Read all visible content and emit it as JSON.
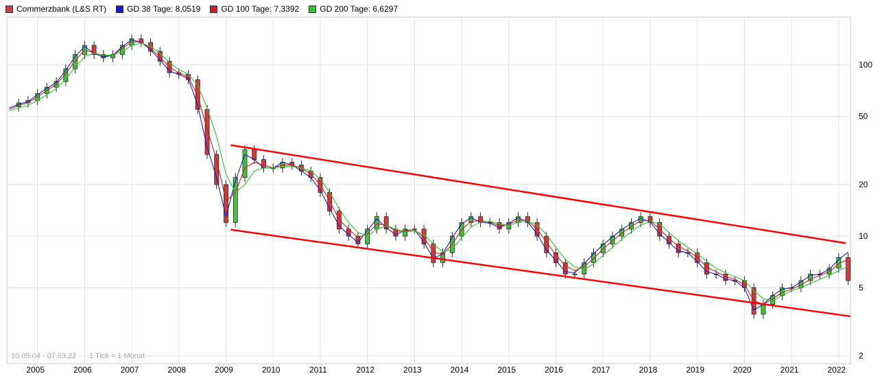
{
  "legend": {
    "items": [
      {
        "label": "Commerzbank (L&S RT)",
        "color": "#d23c3c"
      },
      {
        "label": "GD 38 Tage: 8,0519",
        "color": "#1a1ac8"
      },
      {
        "label": "GD 100 Tage: 7,3392",
        "color": "#d21e1e"
      },
      {
        "label": "GD 200 Tage: 6,6297",
        "color": "#28c828"
      }
    ]
  },
  "footer": {
    "timestamp": "10.05.04 - 07.03.22",
    "tick_info": "1 Tick = 1 Monat"
  },
  "chart_data": {
    "type": "candlestick",
    "scale": "log",
    "y_axis_side": "right",
    "grid": true,
    "ylim": [
      1.8,
      190
    ],
    "xlim": [
      2004.35,
      2022.25
    ],
    "x_tick_labels": [
      "2005",
      "2006",
      "2007",
      "2008",
      "2009",
      "2010",
      "2011",
      "2012",
      "2013",
      "2014",
      "2015",
      "2016",
      "2017",
      "2018",
      "2019",
      "2020",
      "2021",
      "2022"
    ],
    "y_tick_labels": [
      "100",
      "50",
      "20",
      "10",
      "5",
      "2"
    ],
    "y_ticks": [
      100,
      50,
      20,
      10,
      5,
      2
    ],
    "up_color": "#3cc83c",
    "down_color": "#d23c3c",
    "series": [
      {
        "name": "Commerzbank (L&S RT)",
        "kind": "price",
        "color": "#d23c3c",
        "x": [
          2004.4,
          2004.6,
          2004.8,
          2005.0,
          2005.2,
          2005.4,
          2005.6,
          2005.8,
          2006.0,
          2006.2,
          2006.4,
          2006.6,
          2006.8,
          2007.0,
          2007.2,
          2007.4,
          2007.6,
          2007.8,
          2008.0,
          2008.2,
          2008.4,
          2008.6,
          2008.8,
          2009.0,
          2009.2,
          2009.4,
          2009.6,
          2009.8,
          2010.0,
          2010.2,
          2010.4,
          2010.6,
          2010.8,
          2011.0,
          2011.2,
          2011.4,
          2011.6,
          2011.8,
          2012.0,
          2012.2,
          2012.4,
          2012.6,
          2012.8,
          2013.0,
          2013.2,
          2013.4,
          2013.6,
          2013.8,
          2014.0,
          2014.2,
          2014.4,
          2014.6,
          2014.8,
          2015.0,
          2015.2,
          2015.4,
          2015.6,
          2015.8,
          2016.0,
          2016.2,
          2016.4,
          2016.6,
          2016.8,
          2017.0,
          2017.2,
          2017.4,
          2017.6,
          2017.8,
          2018.0,
          2018.2,
          2018.4,
          2018.6,
          2018.8,
          2019.0,
          2019.2,
          2019.4,
          2019.6,
          2019.8,
          2020.0,
          2020.2,
          2020.4,
          2020.6,
          2020.8,
          2021.0,
          2021.2,
          2021.4,
          2021.6,
          2021.8,
          2022.0,
          2022.2
        ],
        "y": [
          57,
          60,
          62,
          68,
          74,
          80,
          95,
          115,
          130,
          115,
          110,
          115,
          130,
          142,
          135,
          120,
          105,
          90,
          88,
          82,
          55,
          30,
          20,
          12,
          22,
          32,
          28,
          25,
          25,
          27,
          26,
          24,
          22,
          18,
          14,
          11,
          10,
          9,
          11,
          13,
          11,
          10,
          11,
          11,
          9,
          7,
          8,
          10,
          12,
          13,
          12,
          12,
          11,
          12,
          13,
          12,
          10,
          8,
          7,
          6,
          6,
          7,
          8,
          9,
          10,
          11,
          12,
          13,
          12,
          10,
          9,
          8,
          8,
          7,
          6,
          6,
          5.5,
          5.5,
          5,
          3.5,
          4,
          4.5,
          5,
          5,
          5.5,
          6,
          6,
          6.5,
          7.5,
          5.5
        ]
      },
      {
        "name": "GD 38 Tage: 8,0519",
        "kind": "ma",
        "color": "#1a1ac8",
        "x": [
          2004.4,
          2004.6,
          2004.8,
          2005.0,
          2005.2,
          2005.4,
          2005.6,
          2005.8,
          2006.0,
          2006.2,
          2006.4,
          2006.6,
          2006.8,
          2007.0,
          2007.2,
          2007.4,
          2007.6,
          2007.8,
          2008.0,
          2008.2,
          2008.4,
          2008.6,
          2008.8,
          2009.0,
          2009.2,
          2009.4,
          2009.6,
          2009.8,
          2010.0,
          2010.2,
          2010.4,
          2010.6,
          2010.8,
          2011.0,
          2011.2,
          2011.4,
          2011.6,
          2011.8,
          2012.0,
          2012.2,
          2012.4,
          2012.6,
          2012.8,
          2013.0,
          2013.2,
          2013.4,
          2013.6,
          2013.8,
          2014.0,
          2014.2,
          2014.4,
          2014.6,
          2014.8,
          2015.0,
          2015.2,
          2015.4,
          2015.6,
          2015.8,
          2016.0,
          2016.2,
          2016.4,
          2016.6,
          2016.8,
          2017.0,
          2017.2,
          2017.4,
          2017.6,
          2017.8,
          2018.0,
          2018.2,
          2018.4,
          2018.6,
          2018.8,
          2019.0,
          2019.2,
          2019.4,
          2019.6,
          2019.8,
          2020.0,
          2020.2,
          2020.4,
          2020.6,
          2020.8,
          2021.0,
          2021.2,
          2021.4,
          2021.6,
          2021.8,
          2022.0,
          2022.2
        ],
        "y": [
          56,
          59,
          61,
          67,
          73,
          79,
          93,
          112,
          128,
          117,
          111,
          114,
          128,
          140,
          136,
          122,
          107,
          92,
          88,
          83,
          58,
          33,
          22,
          13,
          21,
          30,
          28,
          25,
          25,
          27,
          26,
          24,
          22,
          18.5,
          14.5,
          11.5,
          10.2,
          9.2,
          10.8,
          12.6,
          11.2,
          10.2,
          10.8,
          10.9,
          9.2,
          7.4,
          7.9,
          9.8,
          11.8,
          12.8,
          12.1,
          11.9,
          11.2,
          11.9,
          12.8,
          12.1,
          10.3,
          8.3,
          7.2,
          6.2,
          6.1,
          6.9,
          7.9,
          8.9,
          9.9,
          10.9,
          11.9,
          12.7,
          12.1,
          10.3,
          9.2,
          8.2,
          8.0,
          7.1,
          6.2,
          6.0,
          5.6,
          5.5,
          5.0,
          3.7,
          4.0,
          4.5,
          4.9,
          5.0,
          5.4,
          5.9,
          6.0,
          6.4,
          7.3,
          8.05
        ]
      },
      {
        "name": "GD 100 Tage: 7,3392",
        "kind": "ma",
        "color": "#d21e1e",
        "x": [
          2004.4,
          2004.6,
          2004.8,
          2005.0,
          2005.2,
          2005.4,
          2005.6,
          2005.8,
          2006.0,
          2006.2,
          2006.4,
          2006.6,
          2006.8,
          2007.0,
          2007.2,
          2007.4,
          2007.6,
          2007.8,
          2008.0,
          2008.2,
          2008.4,
          2008.6,
          2008.8,
          2009.0,
          2009.2,
          2009.4,
          2009.6,
          2009.8,
          2010.0,
          2010.2,
          2010.4,
          2010.6,
          2010.8,
          2011.0,
          2011.2,
          2011.4,
          2011.6,
          2011.8,
          2012.0,
          2012.2,
          2012.4,
          2012.6,
          2012.8,
          2013.0,
          2013.2,
          2013.4,
          2013.6,
          2013.8,
          2014.0,
          2014.2,
          2014.4,
          2014.6,
          2014.8,
          2015.0,
          2015.2,
          2015.4,
          2015.6,
          2015.8,
          2016.0,
          2016.2,
          2016.4,
          2016.6,
          2016.8,
          2017.0,
          2017.2,
          2017.4,
          2017.6,
          2017.8,
          2018.0,
          2018.2,
          2018.4,
          2018.6,
          2018.8,
          2019.0,
          2019.2,
          2019.4,
          2019.6,
          2019.8,
          2020.0,
          2020.2,
          2020.4,
          2020.6,
          2020.8,
          2021.0,
          2021.2,
          2021.4,
          2021.6,
          2021.8,
          2022.0,
          2022.2
        ],
        "y": [
          55,
          58,
          60,
          65,
          71,
          77,
          89,
          106,
          122,
          118,
          113,
          114,
          125,
          136,
          136,
          125,
          111,
          97,
          90,
          85,
          66,
          42,
          28,
          16,
          18,
          25,
          27,
          26,
          25,
          26,
          26,
          25,
          23,
          20,
          16,
          12.5,
          11,
          9.8,
          10.3,
          11.8,
          11.6,
          10.7,
          10.7,
          10.9,
          9.8,
          8.1,
          7.8,
          9.0,
          10.9,
          12.2,
          12.3,
          12.1,
          11.5,
          11.7,
          12.4,
          12.3,
          11.0,
          9.2,
          7.8,
          6.7,
          6.3,
          6.6,
          7.4,
          8.4,
          9.4,
          10.4,
          11.4,
          12.3,
          12.3,
          11.0,
          9.7,
          8.7,
          8.2,
          7.5,
          6.6,
          6.2,
          5.8,
          5.6,
          5.2,
          4.2,
          4.0,
          4.3,
          4.7,
          4.9,
          5.2,
          5.6,
          5.9,
          6.2,
          6.9,
          7.34
        ]
      },
      {
        "name": "GD 200 Tage: 6,6297",
        "kind": "ma",
        "color": "#28c828",
        "x": [
          2004.4,
          2004.6,
          2004.8,
          2005.0,
          2005.2,
          2005.4,
          2005.6,
          2005.8,
          2006.0,
          2006.2,
          2006.4,
          2006.6,
          2006.8,
          2007.0,
          2007.2,
          2007.4,
          2007.6,
          2007.8,
          2008.0,
          2008.2,
          2008.4,
          2008.6,
          2008.8,
          2009.0,
          2009.2,
          2009.4,
          2009.6,
          2009.8,
          2010.0,
          2010.2,
          2010.4,
          2010.6,
          2010.8,
          2011.0,
          2011.2,
          2011.4,
          2011.6,
          2011.8,
          2012.0,
          2012.2,
          2012.4,
          2012.6,
          2012.8,
          2013.0,
          2013.2,
          2013.4,
          2013.6,
          2013.8,
          2014.0,
          2014.2,
          2014.4,
          2014.6,
          2014.8,
          2015.0,
          2015.2,
          2015.4,
          2015.6,
          2015.8,
          2016.0,
          2016.2,
          2016.4,
          2016.6,
          2016.8,
          2017.0,
          2017.2,
          2017.4,
          2017.6,
          2017.8,
          2018.0,
          2018.2,
          2018.4,
          2018.6,
          2018.8,
          2019.0,
          2019.2,
          2019.4,
          2019.6,
          2019.8,
          2020.0,
          2020.2,
          2020.4,
          2020.6,
          2020.8,
          2021.0,
          2021.2,
          2021.4,
          2021.6,
          2021.8,
          2022.0,
          2022.2
        ],
        "y": [
          54,
          56,
          58,
          62,
          67,
          73,
          83,
          97,
          112,
          117,
          114,
          114,
          120,
          130,
          134,
          128,
          117,
          103,
          94,
          88,
          76,
          56,
          38,
          23,
          18,
          20,
          24,
          25,
          25,
          25.5,
          25.5,
          25,
          24,
          21.5,
          18,
          14.5,
          12,
          10.5,
          10,
          11,
          11.5,
          11,
          10.6,
          10.7,
          10.2,
          9.0,
          8.1,
          8.4,
          9.8,
          11.3,
          12.1,
          12.2,
          11.8,
          11.6,
          12.0,
          12.2,
          11.6,
          10.2,
          8.6,
          7.3,
          6.6,
          6.4,
          6.9,
          7.7,
          8.6,
          9.6,
          10.6,
          11.6,
          12.2,
          11.8,
          10.5,
          9.4,
          8.6,
          7.9,
          7.1,
          6.5,
          6.1,
          5.8,
          5.5,
          4.8,
          4.3,
          4.2,
          4.5,
          4.8,
          5.0,
          5.3,
          5.6,
          5.9,
          6.3,
          6.63
        ]
      },
      {
        "name": "",
        "kind": "trendline",
        "color": "#ff0000",
        "x": [
          2009.1,
          2022.15
        ],
        "y": [
          34,
          9.1
        ]
      },
      {
        "name": "",
        "kind": "trendline",
        "color": "#ff0000",
        "x": [
          2009.1,
          2022.25
        ],
        "y": [
          10.9,
          3.4
        ]
      }
    ]
  }
}
